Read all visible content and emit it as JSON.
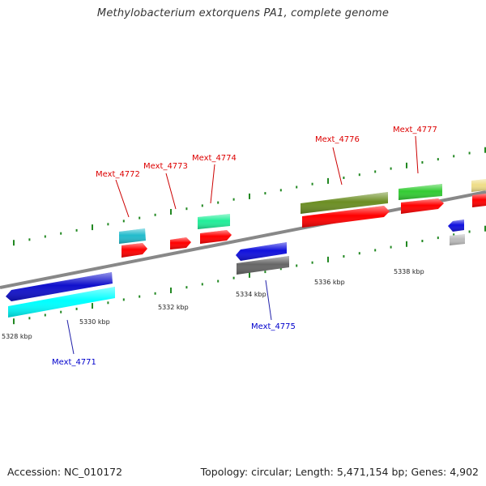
{
  "title": "Methylobacterium extorquens PA1, complete genome",
  "footer": {
    "accession": "Accession: NC_010172",
    "summary": "Topology: circular; Length: 5,471,154 bp; Genes: 4,902"
  },
  "ticks": [
    {
      "label": "5328 kbp"
    },
    {
      "label": "5330 kbp"
    },
    {
      "label": "5332 kbp"
    },
    {
      "label": "5334 kbp"
    },
    {
      "label": "5336 kbp"
    },
    {
      "label": "5338 kbp"
    }
  ],
  "genes": [
    {
      "name": "Mext_4771",
      "color": "#0000cc"
    },
    {
      "name": "Mext_4772",
      "color": "#dd0000"
    },
    {
      "name": "Mext_4773",
      "color": "#dd0000"
    },
    {
      "name": "Mext_4774",
      "color": "#dd0000"
    },
    {
      "name": "Mext_4775",
      "color": "#0000cc"
    },
    {
      "name": "Mext_4776",
      "color": "#dd0000"
    },
    {
      "name": "Mext_4777",
      "color": "#dd0000"
    }
  ]
}
